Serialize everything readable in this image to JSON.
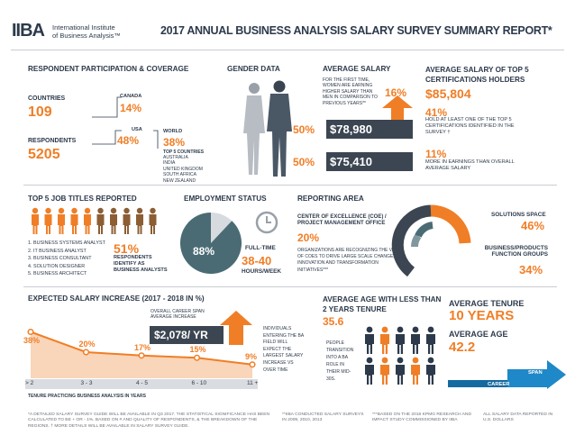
{
  "header": {
    "logo_text": "IIBA",
    "org_line1": "International Institute",
    "org_line2": "of Business Analysis™",
    "title": "2017 ANNUAL BUSINESS ANALYSIS SALARY SURVEY SUMMARY REPORT*"
  },
  "participation": {
    "heading": "RESPONDENT PARTICIPATION & COVERAGE",
    "countries_label": "COUNTRIES",
    "countries_value": "109",
    "respondents_label": "RESPONDENTS",
    "respondents_value": "5205",
    "canada_label": "CANADA",
    "canada_value": "14%",
    "usa_label": "USA",
    "usa_value": "48%",
    "world_label": "WORLD",
    "world_value": "38%",
    "top5_label": "TOP 5 COUNTRIES",
    "top5_countries": [
      "AUSTRALIA",
      "INDIA",
      "UNITED KINGDOM",
      "SOUTH AFRICA",
      "NEW ZEALAND"
    ]
  },
  "gender": {
    "heading": "GENDER DATA"
  },
  "avg_salary": {
    "heading": "AVERAGE SALARY",
    "note": "FOR THE FIRST TIME, WOMEN ARE EARNING HIGHER SALARY THAN MEN IN COMPARISON TO PREVIOUS YEARS**",
    "increase": "16%",
    "women_pct": "50%",
    "women_salary": "$78,980",
    "men_pct": "50%",
    "men_salary": "$75,410"
  },
  "top5cert": {
    "heading": "AVERAGE SALARY OF TOP 5 CERTIFICATIONS HOLDERS",
    "value": "$85,804",
    "pct1": "41%",
    "text1": "HOLD AT LEAST ONE OF THE TOP 5 CERTIFICATIONS IDENTIFIED IN THE SURVEY †",
    "pct2": "11%",
    "text2": "MORE IN EARNINGS THAN OVERALL AVERAGE SALARY"
  },
  "jobs": {
    "heading": "TOP 5 JOB TITLES REPORTED",
    "titles": [
      "1. BUSINESS SYSTEMS ANALYST",
      "2. IT BUSINESS ANALYST",
      "3. BUSINESS CONSULTANT",
      "4. SOLUTION DESIGNER",
      "5. BUSINESS ARCHITECT"
    ],
    "pct": "51%",
    "pct_text": "RESPONDENTS IDENTIFY AS BUSINESS ANALYSTS",
    "people_total": 10,
    "people_highlighted": 5
  },
  "employment": {
    "heading": "EMPLOYMENT STATUS",
    "fulltime_pct": "88%",
    "fulltime_fraction": 0.88,
    "fulltime_label": "FULL-TIME",
    "hours": "38-40",
    "hours_label": "HOURS/WEEK"
  },
  "reporting": {
    "heading": "REPORTING AREA",
    "coe_label": "CENTER OF EXCELLENCE (COE) / PROJECT MANAGEMENT OFFICE",
    "coe_value": "20%",
    "coe_note": "ORGANIZATIONS ARE RECOGNIZING THE VALUE OF COEs TO DRIVE LARGE SCALE CHANGE, INNOVATION AND TRANSFORMATION INITIATIVES***",
    "solutions_label": "SOLUTIONS SPACE",
    "solutions_value": "46%",
    "bp_label": "BUSINESS/PRODUCTS FUNCTION GROUPS",
    "bp_value": "34%"
  },
  "salary_increase": {
    "heading": "EXPECTED SALARY INCREASE (2017 - 2018 in %)",
    "career_note": "OVERALL CAREER SPAN AVERAGE INCREASE",
    "career_value": "$2,078/ YR",
    "side_note": "INDIVIDUALS ENTERING THE BA FIELD WILL EXPECT THE LARGEST SALARY INCREASE VS OVER TIME",
    "footer": "TENURE PRACTICING BUSINESS ANALYSIS IN YEARS"
  },
  "chart_data": {
    "type": "line",
    "categories": [
      "> 2",
      "3 - 3",
      "4 - 5",
      "6 - 10",
      "11 +"
    ],
    "values": [
      38,
      20,
      17,
      15,
      9
    ],
    "value_labels": [
      "38%",
      "20%",
      "17%",
      "15%",
      "9%"
    ],
    "title": "EXPECTED SALARY INCREASE (2017 - 2018 in %)",
    "xlabel": "TENURE PRACTICING BUSINESS ANALYSIS IN YEARS",
    "ylabel": "",
    "ylim": [
      0,
      40
    ]
  },
  "age_tenure": {
    "heading": "AVERAGE AGE WITH LESS THAN 2 YEARS TENURE",
    "value": "35.6",
    "note": "PEOPLE TRANSITION INTO A BA ROLE IN THEIR MID-30S.",
    "people_total": 10,
    "people_highlighted": 3
  },
  "tenure": {
    "heading": "AVERAGE TENURE",
    "value": "10 YEARS",
    "age_heading": "AVERAGE AGE",
    "age_value": "42.2",
    "span_label": "SPAN",
    "career_label": "CAREER"
  },
  "footnotes": {
    "f1": "*A DETAILED SALARY SURVEY GUIDE WILL BE AVAILABLE IN Q3 2017. THE STATISTICAL SIGNIFICANCE HAS BEEN CALCULATED TO BE + OR - 1%. BASED ON # AND QUALITY OF RESPONDENTS, & THE BREAKDOWN OF THE REGIONS. † MORE DETAILS WILL BE AVAILABLE IN SALARY SURVEY GUIDE.",
    "f2": "**IIBA CONDUCTED SALARY SURVEYS IN 2009, 2010, 2013",
    "f3": "***BASED ON THE 2016 KPMG RESEARCH AND IMPACT STUDY COMMISSIONED BY IIBA",
    "f4": "ALL SALARY DATA REPORTED IN U.S. DOLLARS"
  },
  "colors": {
    "orange": "#f07e26",
    "navy": "#2d3a4b",
    "slate": "#4a5866",
    "teal": "#4a6b74",
    "blue": "#1e88c8"
  }
}
